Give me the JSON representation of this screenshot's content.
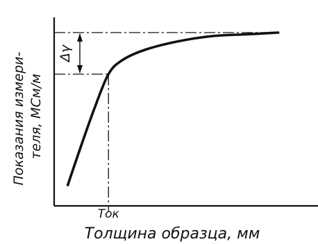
{
  "chart_data": {
    "type": "line",
    "title": "",
    "xlabel": "Толщина образца, мм",
    "ylabel": "Показания измери-\nтеля, МСм/м",
    "x_tick_labels": [
      "Tок"
    ],
    "annotations": [
      "Δγ"
    ],
    "grid": false,
    "legend": "none",
    "x_axis_range": [
      0,
      1
    ],
    "y_axis_range": [
      0,
      1
    ],
    "series": [
      {
        "points": [
          [
            0.06,
            0.12
          ],
          [
            0.12,
            0.35
          ],
          [
            0.18,
            0.57
          ],
          [
            0.24,
            0.76
          ],
          [
            0.3,
            0.84
          ],
          [
            0.4,
            0.9
          ],
          [
            0.55,
            0.95
          ],
          [
            0.7,
            0.98
          ],
          [
            0.85,
            0.99
          ],
          [
            0.99,
            1.0
          ]
        ]
      }
    ],
    "reference": {
      "x_knee": 0.24,
      "y_knee": 0.76,
      "y_max": 1.0
    }
  }
}
